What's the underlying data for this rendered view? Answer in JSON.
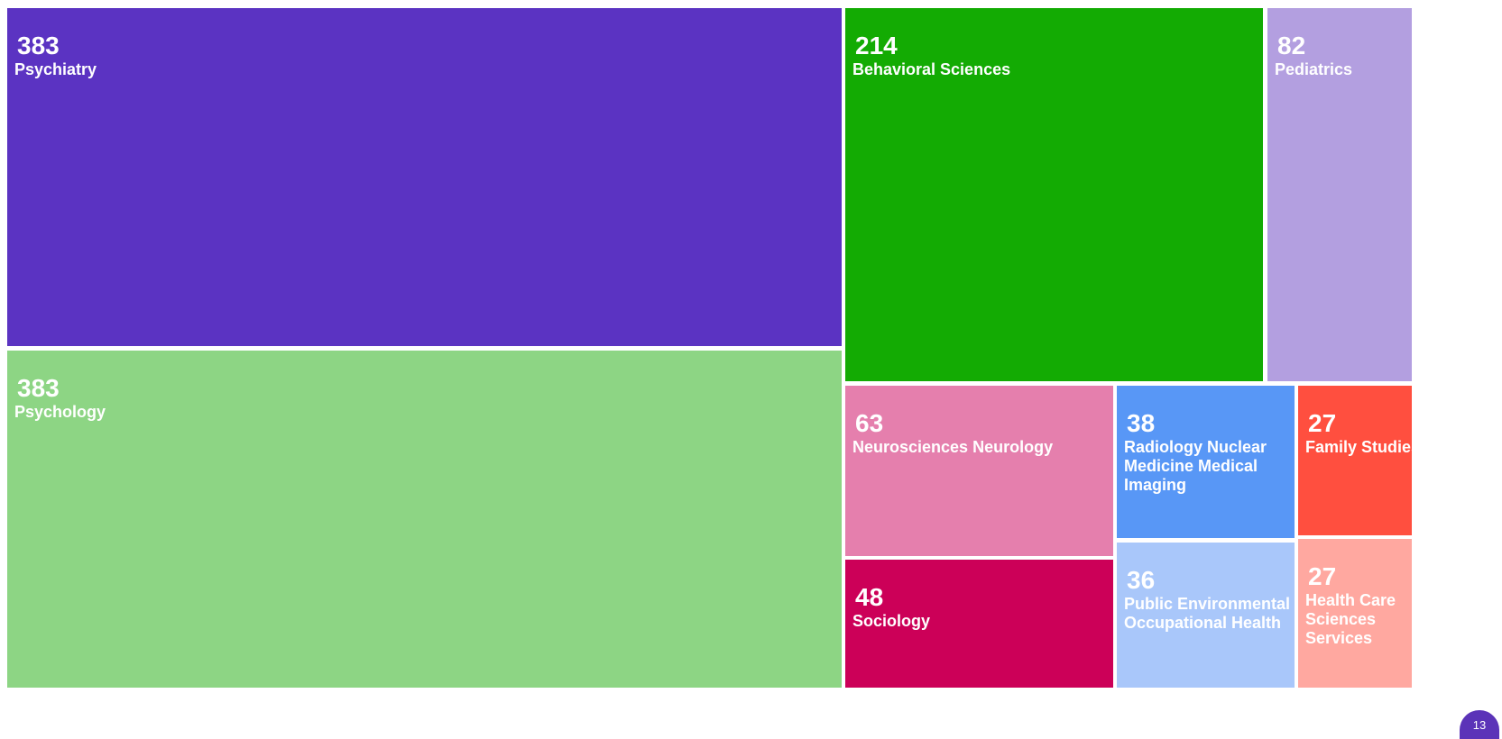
{
  "chart_data": {
    "type": "treemap",
    "title": "",
    "items": [
      {
        "label": "Psychiatry",
        "value": 383,
        "color": "#5b33c2"
      },
      {
        "label": "Psychology",
        "value": 383,
        "color": "#8dd584"
      },
      {
        "label": "Behavioral Sciences",
        "value": 214,
        "color": "#13ab03"
      },
      {
        "label": "Pediatrics",
        "value": 82,
        "color": "#b39fe0"
      },
      {
        "label": "Neurosciences Neurology",
        "value": 63,
        "color": "#e57fad"
      },
      {
        "label": "Sociology",
        "value": 48,
        "color": "#cc0058"
      },
      {
        "label": "Radiology Nuclear Medicine Medical Imaging",
        "value": 38,
        "color": "#5897f6"
      },
      {
        "label": "Public Environmental Occupational Health",
        "value": 36,
        "color": "#a9c7fa"
      },
      {
        "label": "Family Studies",
        "value": 27,
        "color": "#ff4f3f"
      },
      {
        "label": "Health Care Sciences Services",
        "value": 27,
        "color": "#ffa8a0"
      }
    ]
  },
  "badge": {
    "text": "13"
  }
}
